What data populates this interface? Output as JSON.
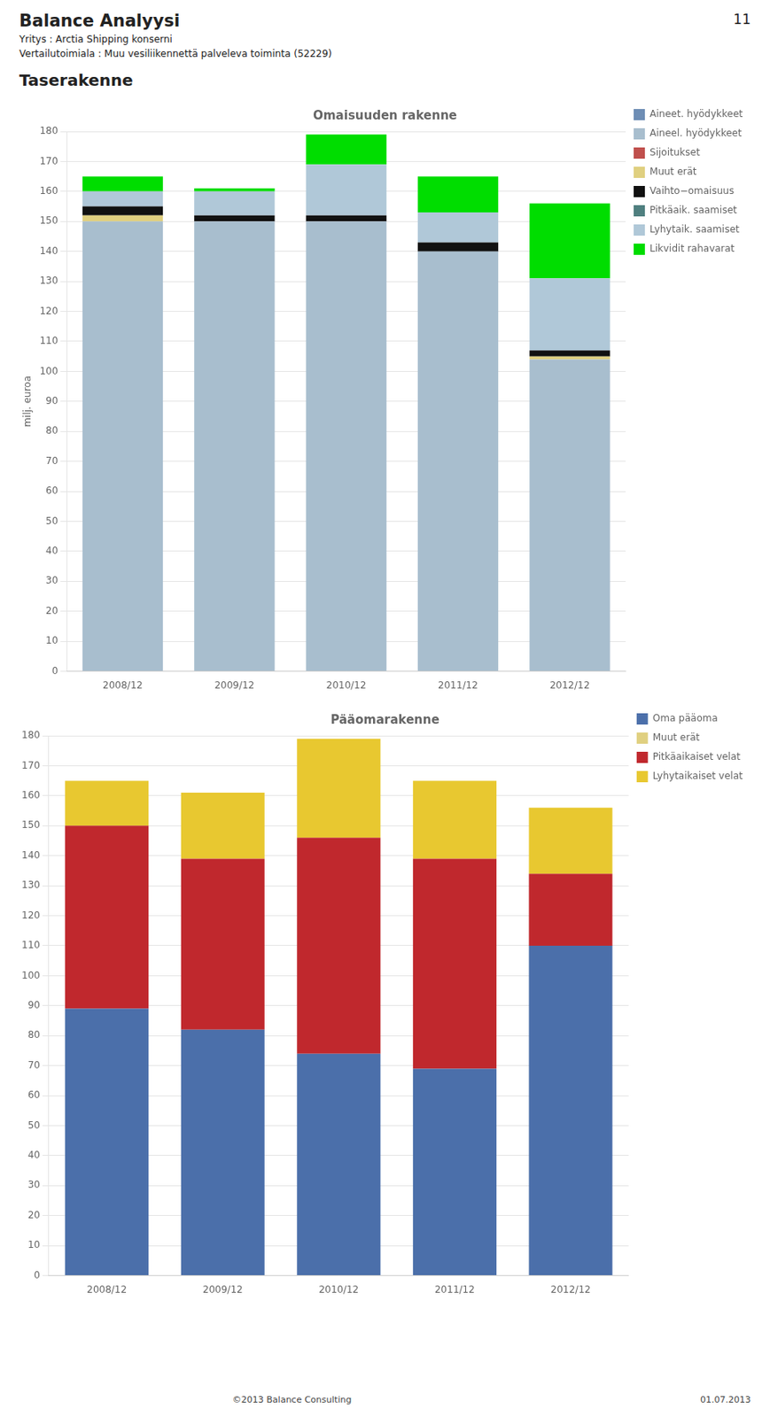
{
  "title": "Balance Analyysi",
  "page_number": "11",
  "subtitle": [
    "Yritys : Arctia Shipping konserni",
    "Vertailutoimiala : Muu vesiliikennettä palveleva toiminta (52229)"
  ],
  "section_title": "Taserakenne",
  "footer": [
    "©2013 Balance Consulting",
    "01.07.2013"
  ],
  "chart_data": [
    {
      "type": "bar",
      "title": "Omaisuuden rakenne",
      "ylabel": "milj. euroa",
      "categories": [
        "2008/12",
        "2009/12",
        "2010/12",
        "2011/12",
        "2012/12"
      ],
      "series": [
        {
          "name": "Aineet. hyödykkeet",
          "color": "#6e8eb5",
          "values": [
            null,
            null,
            null,
            null,
            null
          ]
        },
        {
          "name": "Aineel. hyödykkeet",
          "color": "#a8bece",
          "values": [
            150,
            150,
            150,
            140,
            104
          ]
        },
        {
          "name": "Sijoitukset",
          "color": "#c0504d",
          "values": [
            null,
            null,
            null,
            null,
            null
          ]
        },
        {
          "name": "Muut erät",
          "color": "#e0d080",
          "values": [
            2,
            0,
            0,
            0,
            1
          ]
        },
        {
          "name": "Vaihto−omaisuus",
          "color": "#111111",
          "values": [
            3,
            2,
            2,
            3,
            2
          ]
        },
        {
          "name": "Pitkäaik. saamiset",
          "color": "#4f7f7f",
          "values": [
            0,
            0,
            0,
            0,
            0
          ]
        },
        {
          "name": "Lyhytaik. saamiset",
          "color": "#b0c8d8",
          "values": [
            5,
            8,
            17,
            10,
            24
          ]
        },
        {
          "name": "Likvidit rahavarat",
          "color": "#00dd00",
          "values": [
            5,
            1,
            10,
            12,
            25
          ]
        }
      ],
      "ylim": [
        0,
        180
      ],
      "yticks": [
        0,
        10,
        20,
        30,
        40,
        50,
        60,
        70,
        80,
        90,
        100,
        110,
        120,
        130,
        140,
        150,
        160,
        170,
        180
      ],
      "stacked": true,
      "grid": true,
      "legend": "right"
    },
    {
      "type": "bar",
      "title": "Pääomarakenne",
      "categories": [
        "2008/12",
        "2009/12",
        "2010/12",
        "2011/12",
        "2012/12"
      ],
      "series": [
        {
          "name": "Oma pääoma",
          "color": "#4b6faa",
          "values": [
            89,
            82,
            74,
            69,
            110
          ]
        },
        {
          "name": "Muut erät",
          "color": "#e0d080",
          "values": [
            null,
            null,
            null,
            null,
            null
          ]
        },
        {
          "name": "Pitkäaikaiset velat",
          "color": "#c0282d",
          "values": [
            61,
            57,
            72,
            70,
            24
          ]
        },
        {
          "name": "Lyhytaikaiset velat",
          "color": "#e8c830",
          "values": [
            15,
            22,
            33,
            26,
            22
          ]
        }
      ],
      "ylim": [
        0,
        180
      ],
      "yticks": [
        0,
        10,
        20,
        30,
        40,
        50,
        60,
        70,
        80,
        90,
        100,
        110,
        120,
        130,
        140,
        150,
        160,
        170,
        180
      ],
      "stacked": true,
      "grid": true,
      "legend": "right"
    }
  ]
}
